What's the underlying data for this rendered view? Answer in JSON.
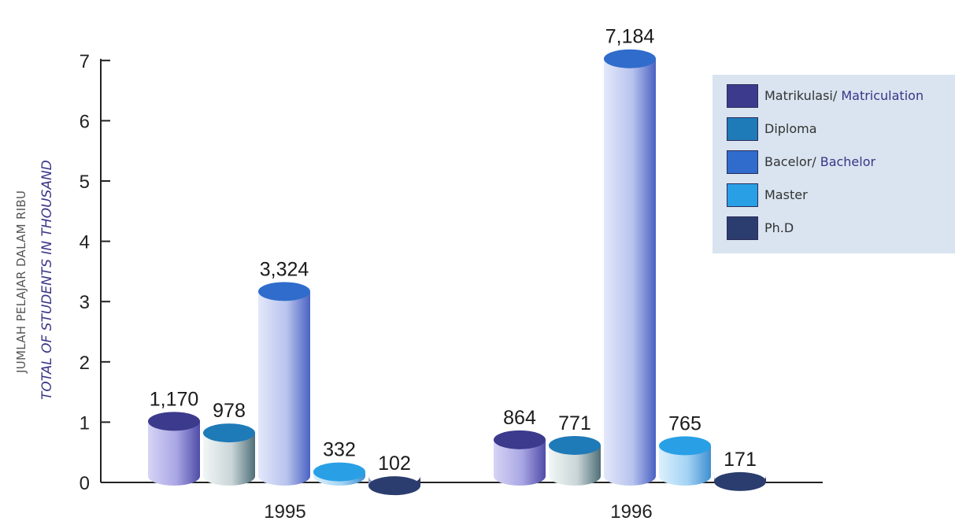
{
  "chart_data": {
    "type": "bar",
    "title": "",
    "ylabel_malay": "JUMLAH PELAJAR DALAM RIBU",
    "ylabel_english": "TOTAL OF STUDENTS IN THOUSAND",
    "ylim": [
      0,
      7
    ],
    "yticks": [
      "0",
      "1",
      "2",
      "3",
      "4",
      "5",
      "6",
      "7"
    ],
    "categories": [
      "1995",
      "1996"
    ],
    "series": [
      {
        "name": "Matrikulasi/ Matriculation",
        "name_malay": "Matrikulasi/",
        "name_english": "Matriculation",
        "values": [
          1.17,
          0.864
        ],
        "labels": [
          "1,170",
          "864"
        ],
        "color": "#3b3a8c"
      },
      {
        "name": "Diploma",
        "name_malay": "Diploma",
        "name_english": "",
        "values": [
          0.978,
          0.771
        ],
        "labels": [
          "978",
          "771"
        ],
        "color": "#1f7ab8"
      },
      {
        "name": "Bacelor/ Bachelor",
        "name_malay": "Bacelor/",
        "name_english": "Bachelor",
        "values": [
          3.324,
          7.184
        ],
        "labels": [
          "3,324",
          "7,184"
        ],
        "color": "#2f6ccc"
      },
      {
        "name": "Master",
        "name_malay": "Master",
        "name_english": "",
        "values": [
          0.332,
          0.765
        ],
        "labels": [
          "332",
          "765"
        ],
        "color": "#29a0e6"
      },
      {
        "name": "Ph.D",
        "name_malay": "Ph.D",
        "name_english": "",
        "values": [
          0.102,
          0.171
        ],
        "labels": [
          "102",
          "171"
        ],
        "color": "#2b3d6e"
      }
    ],
    "bar_body_colors": [
      "#a8a6e0",
      "#c9d6d8",
      "#b6c2ec",
      "#9fd0f2",
      "#6a7aa8"
    ],
    "legend_position": "right",
    "grid": false
  }
}
